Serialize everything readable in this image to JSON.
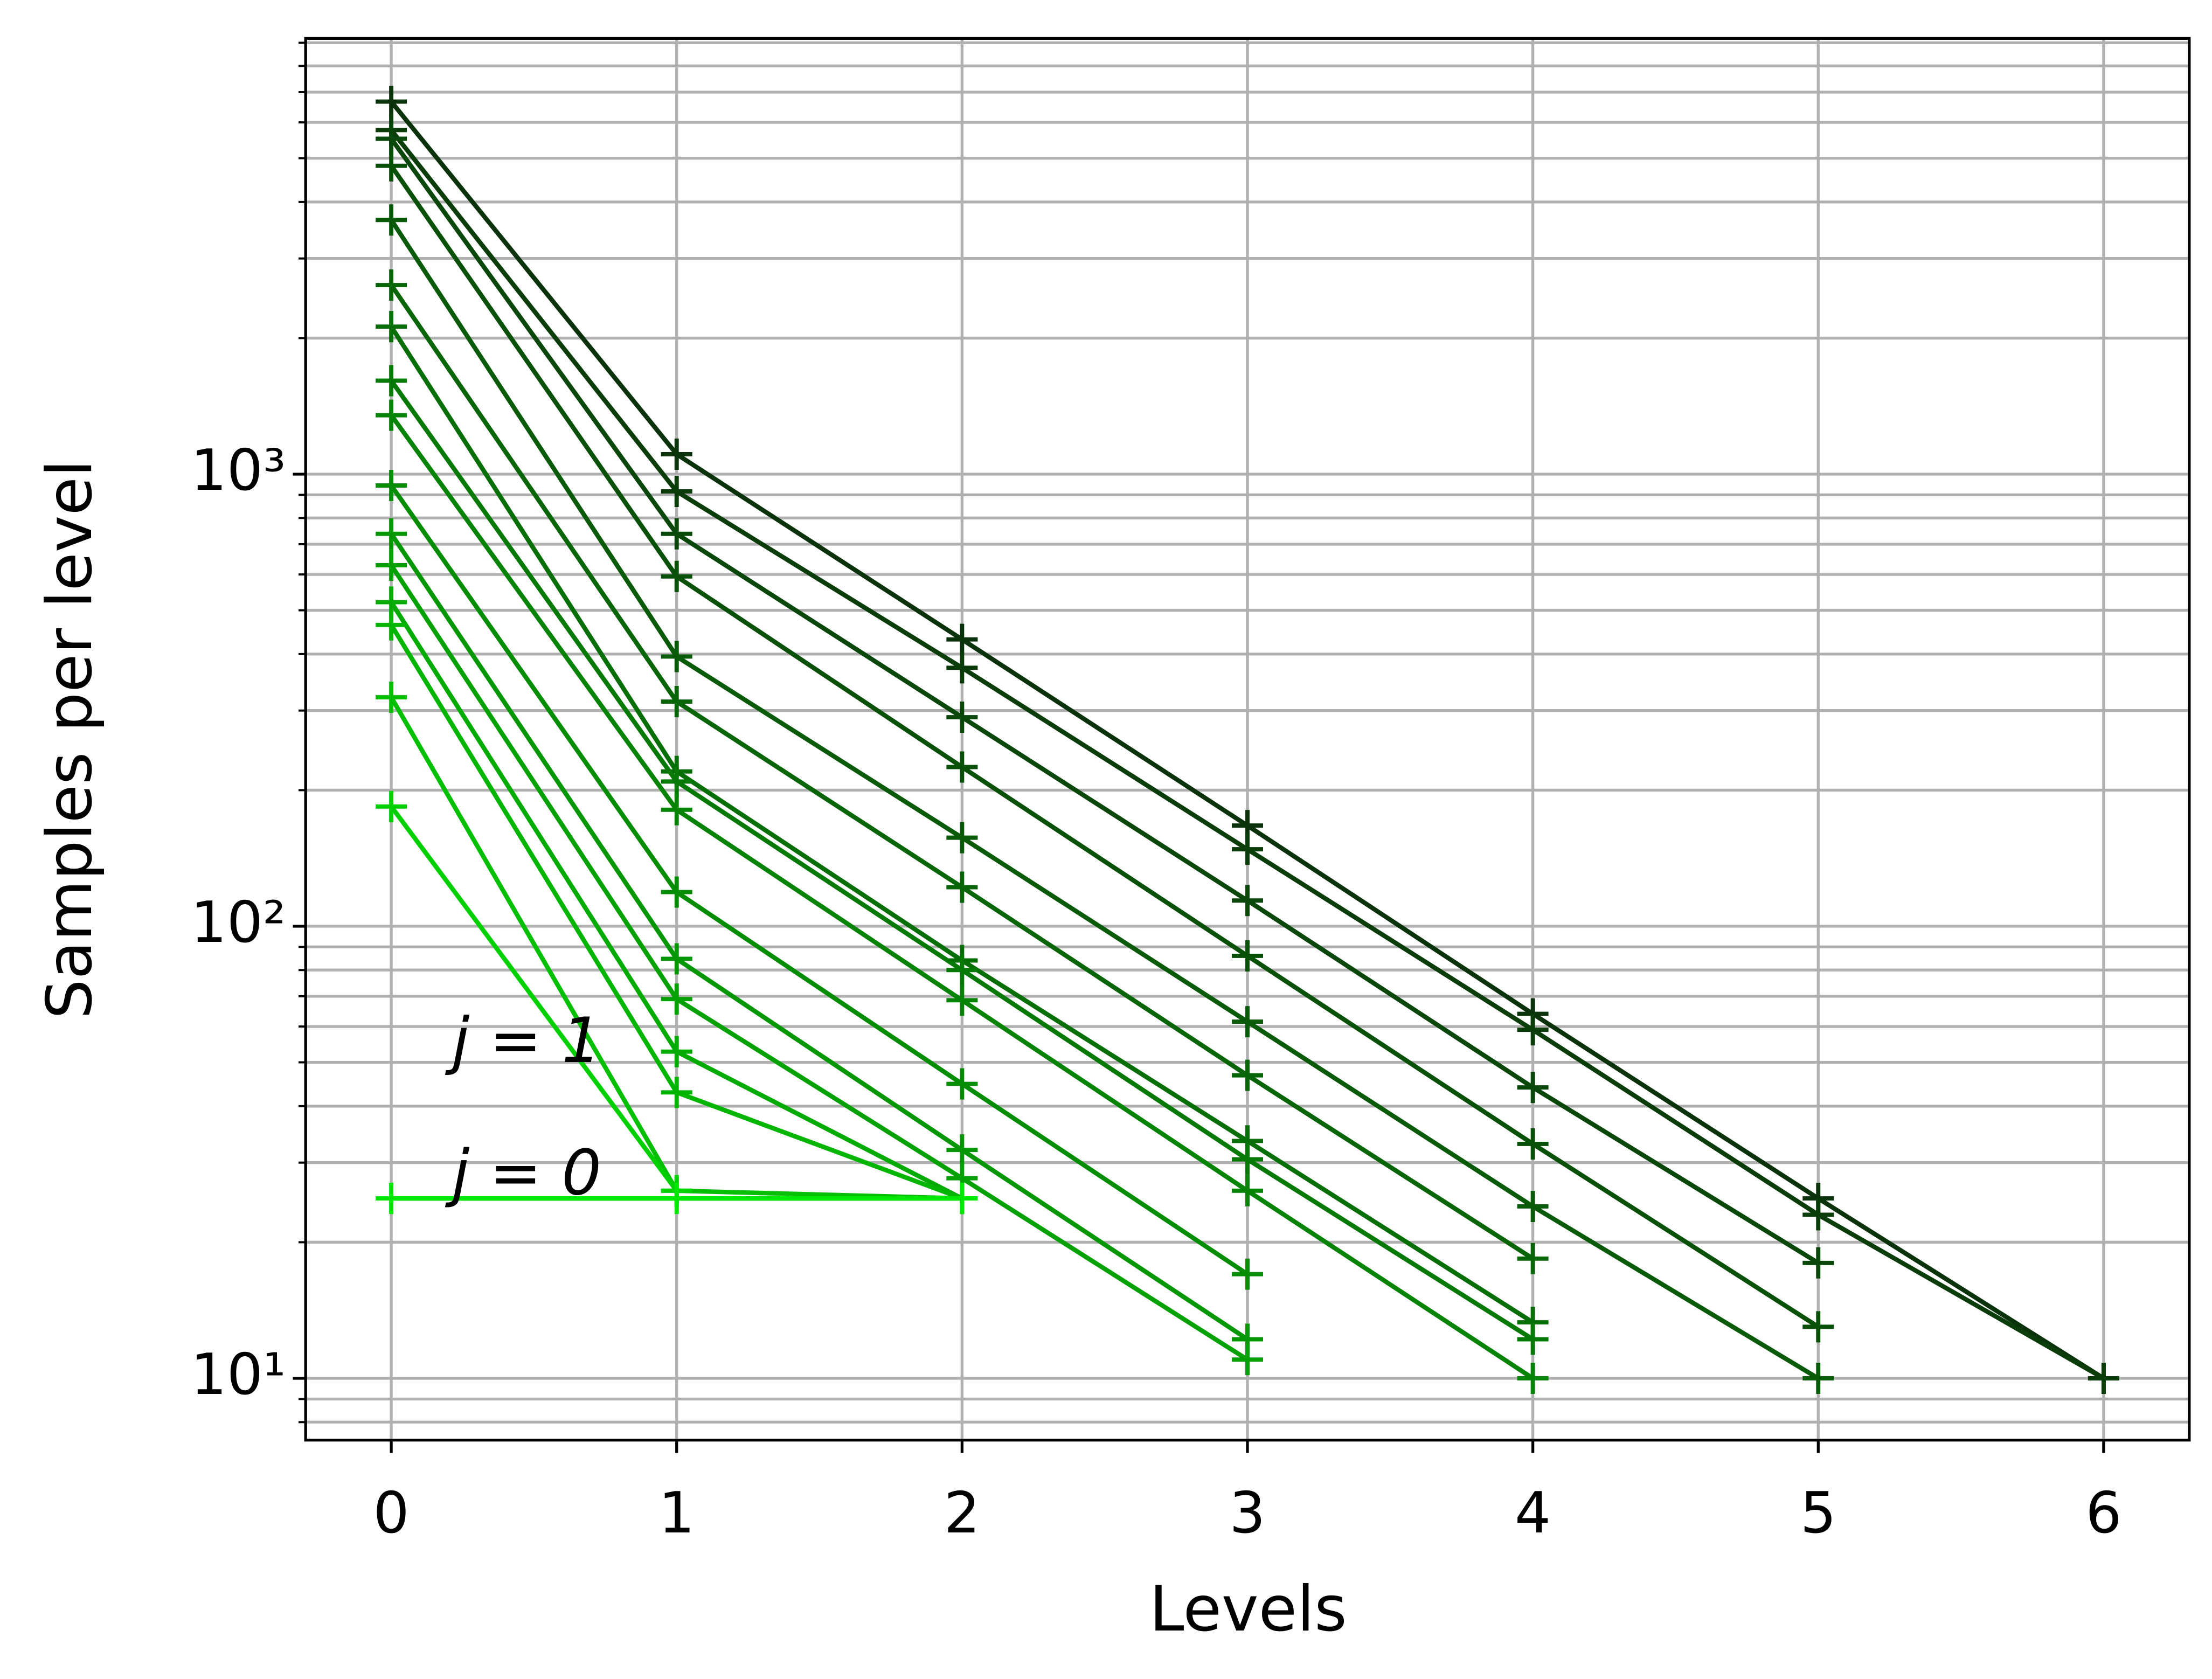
{
  "chart_data": {
    "type": "line",
    "xlabel": "Levels",
    "ylabel": "Samples per level",
    "log_y": true,
    "grid": true,
    "xlim": [
      -0.3,
      6.3
    ],
    "xticks": [
      0,
      1,
      2,
      3,
      4,
      5,
      6
    ],
    "ylim": [
      7.3,
      9200
    ],
    "yticks": [
      {
        "value": 10,
        "label": "10¹"
      },
      {
        "value": 100,
        "label": "10²"
      },
      {
        "value": 1000,
        "label": "10³"
      }
    ],
    "yminor": [
      8,
      9,
      20,
      30,
      40,
      50,
      60,
      70,
      80,
      90,
      200,
      300,
      400,
      500,
      600,
      700,
      800,
      900,
      2000,
      3000,
      4000,
      5000,
      6000,
      7000,
      8000,
      9000
    ],
    "x": [
      0,
      1,
      2,
      3,
      4,
      5,
      6
    ],
    "series": [
      {
        "color": "#0b330b",
        "values": [
          6670,
          1107,
          431,
          167,
          64,
          25,
          10
        ]
      },
      {
        "color": "#0a3d0a",
        "values": [
          5770,
          916,
          373,
          148,
          59,
          23,
          10
        ]
      },
      {
        "color": "#0a470a",
        "values": [
          5520,
          738,
          290,
          114,
          44,
          18,
          null
        ]
      },
      {
        "color": "#095109",
        "values": [
          4810,
          594,
          225,
          86,
          33,
          13,
          null
        ]
      },
      {
        "color": "#095b09",
        "values": [
          3650,
          395,
          157,
          61.5,
          24,
          10,
          null
        ]
      },
      {
        "color": "#086508",
        "values": [
          2620,
          314,
          122,
          46.8,
          18.4,
          null,
          null
        ]
      },
      {
        "color": "#086f08",
        "values": [
          2120,
          220,
          84,
          33.5,
          13.3,
          null,
          null
        ]
      },
      {
        "color": "#077907",
        "values": [
          1610,
          209,
          80,
          30.5,
          12.2,
          null,
          null
        ]
      },
      {
        "color": "#078307",
        "values": [
          1350,
          181,
          68.6,
          26,
          10,
          null,
          null
        ]
      },
      {
        "color": "#068d06",
        "values": [
          944,
          119,
          44.8,
          17,
          null,
          null,
          null
        ]
      },
      {
        "color": "#069706",
        "values": [
          738,
          84.7,
          32,
          12.2,
          null,
          null,
          null
        ]
      },
      {
        "color": "#05a105",
        "values": [
          629,
          69,
          27.7,
          11,
          null,
          null,
          null
        ]
      },
      {
        "color": "#05ab05",
        "values": [
          521,
          52.8,
          25,
          null,
          null,
          null,
          null
        ]
      },
      {
        "color": "#04b504",
        "values": [
          464,
          42.9,
          25,
          null,
          null,
          null,
          null
        ]
      },
      {
        "color": "#04bf04",
        "values": [
          321,
          26,
          25,
          null,
          null,
          null,
          null
        ]
      },
      {
        "color": "#03d003",
        "values": [
          184,
          26,
          null,
          null,
          null,
          null,
          null
        ]
      },
      {
        "color": "#00e800",
        "values": [
          25,
          25,
          25,
          null,
          null,
          null,
          null
        ]
      }
    ],
    "annotations": [
      "j = 1",
      "j = 0"
    ]
  }
}
